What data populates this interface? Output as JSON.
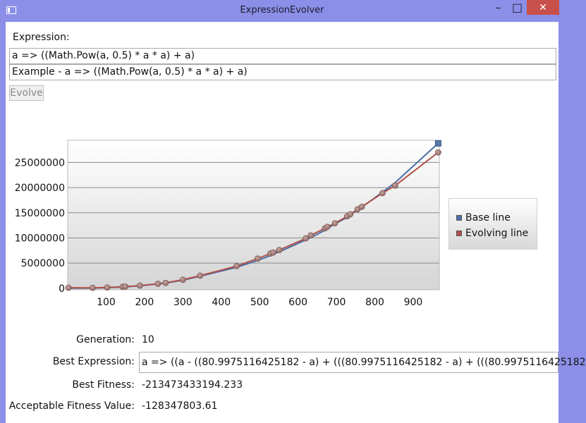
{
  "window": {
    "title": "ExpressionEvolver",
    "minimize_glyph": "–",
    "maximize_glyph": "□",
    "close_glyph": "✕"
  },
  "form": {
    "expression_label": "Expression:",
    "expression_value": "a => ((Math.Pow(a, 0.5) * a * a) + a)",
    "example_text": "Example - a => ((Math.Pow(a, 0.5) * a * a) + a)",
    "evolve_button": "Evolve"
  },
  "chart_data": {
    "type": "line",
    "series": [
      {
        "name": "Base line",
        "color": "#4a6fa5",
        "points": [
          [
            2,
            2
          ],
          [
            65,
            33000
          ],
          [
            103,
            100000
          ],
          [
            143,
            240000
          ],
          [
            150,
            270000
          ],
          [
            188,
            490000
          ],
          [
            235,
            850000
          ],
          [
            255,
            1020000
          ],
          [
            300,
            1600000
          ],
          [
            345,
            2390000
          ],
          [
            440,
            4160000
          ],
          [
            495,
            5540000
          ],
          [
            528,
            6500000
          ],
          [
            535,
            6800000
          ],
          [
            551,
            7220000
          ],
          [
            620,
            9600000
          ],
          [
            633,
            10040000
          ],
          [
            670,
            11540000
          ],
          [
            676,
            11840000
          ],
          [
            696,
            12790000
          ],
          [
            728,
            14100000
          ],
          [
            736,
            14500000
          ],
          [
            755,
            15600000
          ],
          [
            766,
            16100000
          ],
          [
            820,
            19100000
          ],
          [
            853,
            21000000
          ],
          [
            965,
            28800000
          ]
        ]
      },
      {
        "name": "Evolving line",
        "color": "#b0504a",
        "points": [
          [
            2,
            100000
          ],
          [
            65,
            90000
          ],
          [
            103,
            150000
          ],
          [
            143,
            300000
          ],
          [
            150,
            330000
          ],
          [
            188,
            520000
          ],
          [
            235,
            890000
          ],
          [
            255,
            1060000
          ],
          [
            300,
            1700000
          ],
          [
            345,
            2500000
          ],
          [
            440,
            4400000
          ],
          [
            495,
            5900000
          ],
          [
            528,
            6900000
          ],
          [
            535,
            7100000
          ],
          [
            551,
            7600000
          ],
          [
            620,
            9900000
          ],
          [
            633,
            10500000
          ],
          [
            670,
            11900000
          ],
          [
            676,
            12200000
          ],
          [
            696,
            12900000
          ],
          [
            728,
            14300000
          ],
          [
            736,
            14700000
          ],
          [
            755,
            15700000
          ],
          [
            766,
            16200000
          ],
          [
            820,
            18900000
          ],
          [
            853,
            20400000
          ],
          [
            965,
            27000000
          ]
        ]
      }
    ],
    "x_ticks": [
      "100",
      "200",
      "300",
      "400",
      "500",
      "600",
      "700",
      "800",
      "900"
    ],
    "y_ticks": [
      "0",
      "5000000",
      "10000000",
      "15000000",
      "20000000",
      "25000000"
    ],
    "xlim": [
      0,
      968
    ],
    "ylim": [
      -300000,
      29400000
    ],
    "grid": "horizontal",
    "legend_position": "right"
  },
  "results": {
    "generation_label": "Generation:",
    "generation_value": "10",
    "best_expression_label": "Best Expression:",
    "best_expression_value": "a => ((a - ((80.9975116425182 - a) + (((80.9975116425182 - a) + (((80.9975116425182",
    "best_fitness_label": "Best Fitness:",
    "best_fitness_value": "-213473433194.233",
    "acceptable_fitness_label": "Acceptable Fitness Value:",
    "acceptable_fitness_value": "-128347803.61"
  }
}
